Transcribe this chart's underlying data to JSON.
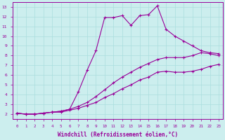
{
  "xlabel": "Windchill (Refroidissement éolien,°C)",
  "background_color": "#cceeee",
  "line_color": "#990099",
  "grid_color": "#aadddd",
  "xlim": [
    -0.5,
    23.5
  ],
  "ylim": [
    1.5,
    13.5
  ],
  "xticks": [
    0,
    1,
    2,
    3,
    4,
    5,
    6,
    7,
    8,
    9,
    10,
    11,
    12,
    13,
    14,
    15,
    16,
    17,
    18,
    19,
    20,
    21,
    22,
    23
  ],
  "yticks": [
    2,
    3,
    4,
    5,
    6,
    7,
    8,
    9,
    10,
    11,
    12,
    13
  ],
  "line1_x": [
    0,
    1,
    2,
    3,
    4,
    5,
    6,
    7,
    8,
    9,
    10,
    11,
    12,
    13,
    14,
    15,
    16,
    17,
    18,
    19,
    20,
    21,
    22,
    23
  ],
  "line1_y": [
    2.1,
    2.0,
    2.0,
    2.1,
    2.2,
    2.3,
    2.5,
    4.3,
    6.5,
    8.5,
    11.9,
    11.9,
    12.1,
    11.1,
    12.1,
    12.2,
    13.1,
    10.7,
    10.0,
    9.5,
    9.0,
    8.5,
    8.3,
    8.2
  ],
  "line2_x": [
    0,
    1,
    2,
    3,
    4,
    5,
    6,
    7,
    8,
    9,
    10,
    11,
    12,
    13,
    14,
    15,
    16,
    17,
    18,
    19,
    20,
    21,
    22,
    23
  ],
  "line2_y": [
    2.1,
    2.0,
    2.0,
    2.1,
    2.2,
    2.3,
    2.5,
    2.8,
    3.2,
    3.8,
    4.5,
    5.2,
    5.8,
    6.3,
    6.8,
    7.2,
    7.6,
    7.8,
    7.8,
    7.8,
    8.0,
    8.3,
    8.2,
    8.0
  ],
  "line3_x": [
    0,
    1,
    2,
    3,
    4,
    5,
    6,
    7,
    8,
    9,
    10,
    11,
    12,
    13,
    14,
    15,
    16,
    17,
    18,
    19,
    20,
    21,
    22,
    23
  ],
  "line3_y": [
    2.1,
    2.0,
    2.0,
    2.1,
    2.2,
    2.2,
    2.4,
    2.6,
    2.9,
    3.2,
    3.7,
    4.1,
    4.6,
    5.0,
    5.5,
    5.8,
    6.3,
    6.4,
    6.3,
    6.3,
    6.4,
    6.6,
    6.9,
    7.1
  ]
}
